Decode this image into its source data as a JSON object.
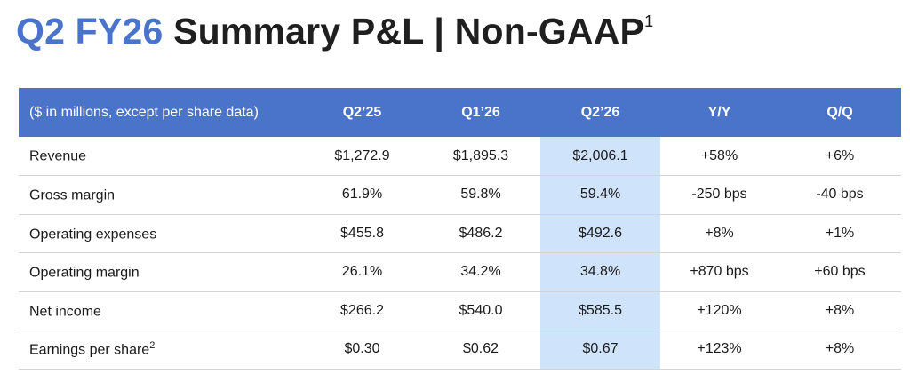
{
  "title": {
    "accent": "Q2 FY26",
    "main": "Summary P&L | Non-GAAP",
    "footnote": "1"
  },
  "table": {
    "header": [
      "($ in millions, except per share data)",
      "Q2’25",
      "Q1’26",
      "Q2’26",
      "Y/Y",
      "Q/Q"
    ],
    "highlight_column": "Q2’26",
    "highlight_color": "#cfe3fa",
    "header_color": "#4a74c9",
    "rows": [
      {
        "label": "Revenue",
        "footnote": "",
        "values": [
          "$1,272.9",
          "$1,895.3",
          "$2,006.1",
          "+58%",
          "+6%"
        ]
      },
      {
        "label": "Gross margin",
        "footnote": "",
        "values": [
          "61.9%",
          "59.8%",
          "59.4%",
          "-250 bps",
          "-40 bps"
        ]
      },
      {
        "label": "Operating expenses",
        "footnote": "",
        "values": [
          "$455.8",
          "$486.2",
          "$492.6",
          "+8%",
          "+1%"
        ]
      },
      {
        "label": "Operating margin",
        "footnote": "",
        "values": [
          "26.1%",
          "34.2%",
          "34.8%",
          "+870 bps",
          "+60 bps"
        ]
      },
      {
        "label": "Net income",
        "footnote": "",
        "values": [
          "$266.2",
          "$540.0",
          "$585.5",
          "+120%",
          "+8%"
        ]
      },
      {
        "label": "Earnings per share",
        "footnote": "2",
        "values": [
          "$0.30",
          "$0.62",
          "$0.67",
          "+123%",
          "+8%"
        ]
      }
    ]
  }
}
